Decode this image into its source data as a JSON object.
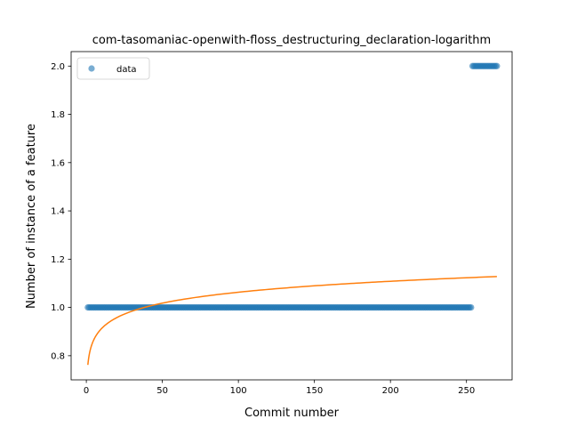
{
  "chart_data": {
    "type": "scatter",
    "title": "com-tasomaniac-openwith-floss_destructuring_declaration-logarithm",
    "xlabel": "Commit number",
    "ylabel": "Number of instance of a feature",
    "xlim": [
      -10,
      280
    ],
    "ylim": [
      0.7,
      2.06
    ],
    "xticks": [
      0,
      50,
      100,
      150,
      200,
      250
    ],
    "yticks": [
      0.8,
      1.0,
      1.2,
      1.4,
      1.6,
      1.8,
      2.0
    ],
    "legend": {
      "position": "top-left",
      "entries": [
        "data"
      ]
    },
    "colors": {
      "data": "#1f77b4",
      "fit": "#ff7f0e"
    },
    "series": [
      {
        "name": "data",
        "kind": "scatter",
        "segments": [
          {
            "x_start": 1,
            "x_end": 253,
            "y": 1.0
          },
          {
            "x_start": 254,
            "x_end": 270,
            "y": 2.0
          }
        ]
      },
      {
        "kind": "line",
        "model": "logarithmic fit",
        "x": [
          1,
          2,
          3,
          5,
          8,
          12,
          20,
          30,
          50,
          75,
          100,
          150,
          200,
          250,
          270
        ],
        "y": [
          0.762,
          0.833,
          0.875,
          0.927,
          0.975,
          1.013,
          1.056,
          1.082,
          1.018,
          1.047,
          1.067,
          1.095,
          1.114,
          1.125,
          1.128
        ]
      }
    ]
  }
}
